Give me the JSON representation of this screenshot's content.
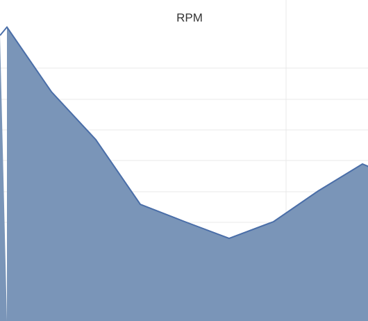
{
  "chart_data": {
    "type": "area",
    "title": "RPM",
    "xlabel": "",
    "ylabel": "",
    "x": [
      0,
      1,
      2,
      3,
      4,
      5,
      6,
      7,
      8,
      9
    ],
    "y_visible_relative": [
      0.915,
      0.715,
      0.565,
      0.363,
      0.31,
      0.258,
      0.309,
      0.405,
      0.49,
      0.43
    ],
    "series": [
      {
        "name": "",
        "values": [
          0.915,
          0.715,
          0.565,
          0.363,
          0.31,
          0.258,
          0.309,
          0.405,
          0.49,
          0.43
        ],
        "color": "#7a95b8",
        "line_color": "#4a6ea8"
      }
    ],
    "grid": true
  }
}
